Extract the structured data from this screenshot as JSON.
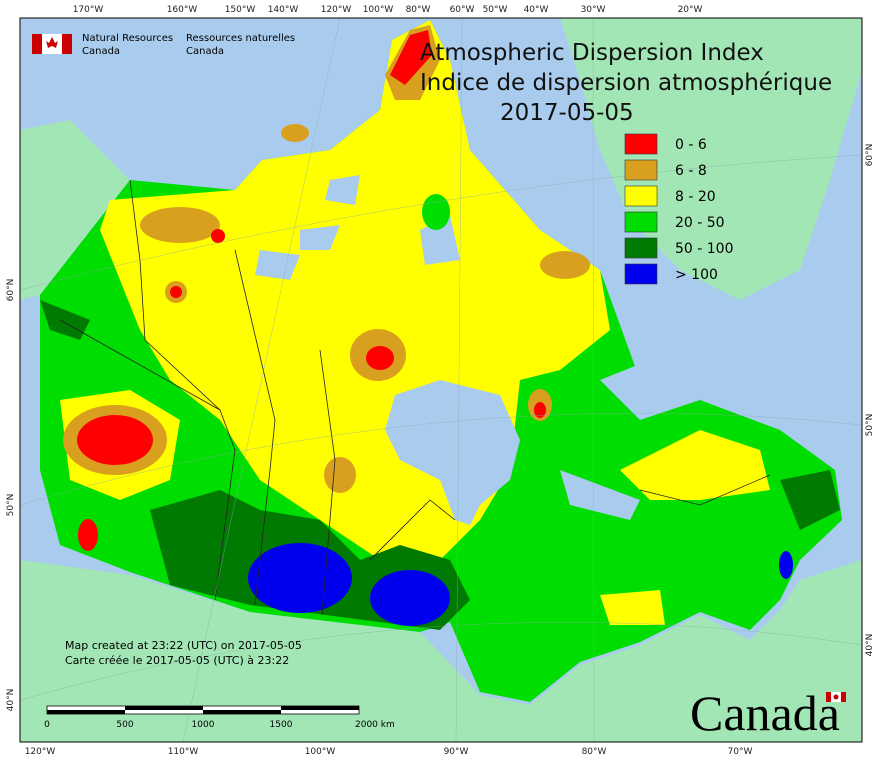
{
  "header": {
    "agency_en": "Natural Resources",
    "country_en": "Canada",
    "agency_fr": "Ressources naturelles",
    "country_fr": "Canada"
  },
  "title": {
    "en": "Atmospheric Dispersion Index",
    "fr": "Indice de dispersion atmosphérique",
    "date": "2017-05-05"
  },
  "legend": [
    {
      "label": "0 - 6",
      "color": "#ff0000"
    },
    {
      "label": "6 - 8",
      "color": "#d9a020"
    },
    {
      "label": "8 - 20",
      "color": "#ffff00"
    },
    {
      "label": "20 - 50",
      "color": "#00dd00"
    },
    {
      "label": "50 - 100",
      "color": "#007a00"
    },
    {
      "label": "> 100",
      "color": "#0000ee"
    }
  ],
  "graticule": {
    "top": [
      "170°W",
      "160°W",
      "150°W",
      "140°W",
      "120°W",
      "100°W",
      "80°W",
      "60°W",
      "50°W",
      "40°W",
      "30°W",
      "20°W"
    ],
    "bottom": [
      "120°W",
      "110°W",
      "100°W",
      "90°W",
      "80°W",
      "70°W"
    ],
    "left": [
      "60°N",
      "50°N",
      "40°N"
    ],
    "right": [
      "60°N",
      "50°N",
      "40°N"
    ]
  },
  "credits": [
    "Map created at 23:22 (UTC) on 2017-05-05",
    "Carte créée le 2017-05-05 (UTC) à 23:22"
  ],
  "scale_bar": [
    "0",
    "500",
    "1000",
    "1500",
    "2000 km"
  ],
  "wordmark": "Canada"
}
